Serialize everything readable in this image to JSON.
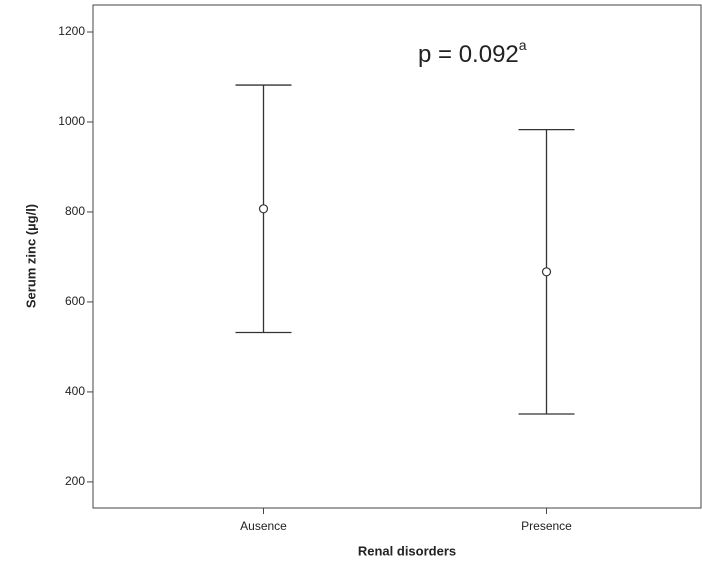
{
  "chart_data": {
    "type": "errorbar",
    "annotation": "p = 0.092",
    "annotation_superscript": "a",
    "x_label": "Renal disorders",
    "y_label": "Serum zinc (µg/l)",
    "categories": [
      "Ausence",
      "Presence"
    ],
    "values": [
      807,
      667
    ],
    "errors": [
      275,
      316
    ],
    "color": "#333333",
    "ylim": [
      142,
      1260
    ],
    "yticks": [
      200,
      400,
      600,
      800,
      1000,
      1200
    ]
  }
}
